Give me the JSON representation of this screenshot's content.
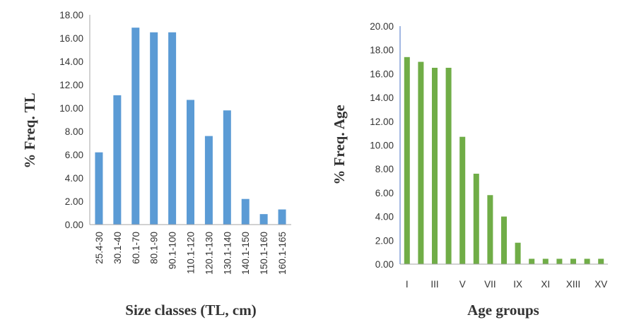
{
  "chart_data": [
    {
      "type": "bar",
      "xlabel": "Size classes (TL, cm)",
      "ylabel": "% Freq. TL",
      "categories": [
        "25.4-30",
        "30.1-40",
        "60.1-70",
        "80.1-90",
        "90.1-100",
        "110.1-120",
        "120.1-130",
        "130.1-140",
        "140.1-150",
        "150.1-160",
        "160.1-165"
      ],
      "values": [
        6.2,
        11.1,
        16.9,
        16.5,
        16.5,
        10.7,
        7.6,
        9.8,
        2.2,
        0.9,
        1.3
      ],
      "ylim": [
        0,
        18
      ],
      "yticks": [
        "0.00",
        "2.00",
        "4.00",
        "6.00",
        "8.00",
        "10.00",
        "12.00",
        "14.00",
        "16.00",
        "18.00"
      ],
      "color": "#5b9bd5",
      "grid": false,
      "legend": "none"
    },
    {
      "type": "bar",
      "xlabel": "Age groups",
      "ylabel": "% Freq. Age",
      "categories": [
        "I",
        "II",
        "III",
        "IV",
        "V",
        "VI",
        "VII",
        "VIII",
        "IX",
        "X",
        "XI",
        "XII",
        "XIII",
        "XIV",
        "XV"
      ],
      "shown_tick_labels": [
        "I",
        "III",
        "V",
        "VII",
        "IX",
        "XI",
        "XIII",
        "XV"
      ],
      "values": [
        17.4,
        17.0,
        16.5,
        16.5,
        10.7,
        7.6,
        5.8,
        4.0,
        1.8,
        0.45,
        0.45,
        0.45,
        0.45,
        0.45,
        0.45
      ],
      "ylim": [
        0,
        20
      ],
      "yticks": [
        "0.00",
        "2.00",
        "4.00",
        "6.00",
        "8.00",
        "10.00",
        "12.00",
        "14.00",
        "16.00",
        "18.00",
        "20.00"
      ],
      "color": "#70ad47",
      "grid": false,
      "legend": "none"
    }
  ]
}
